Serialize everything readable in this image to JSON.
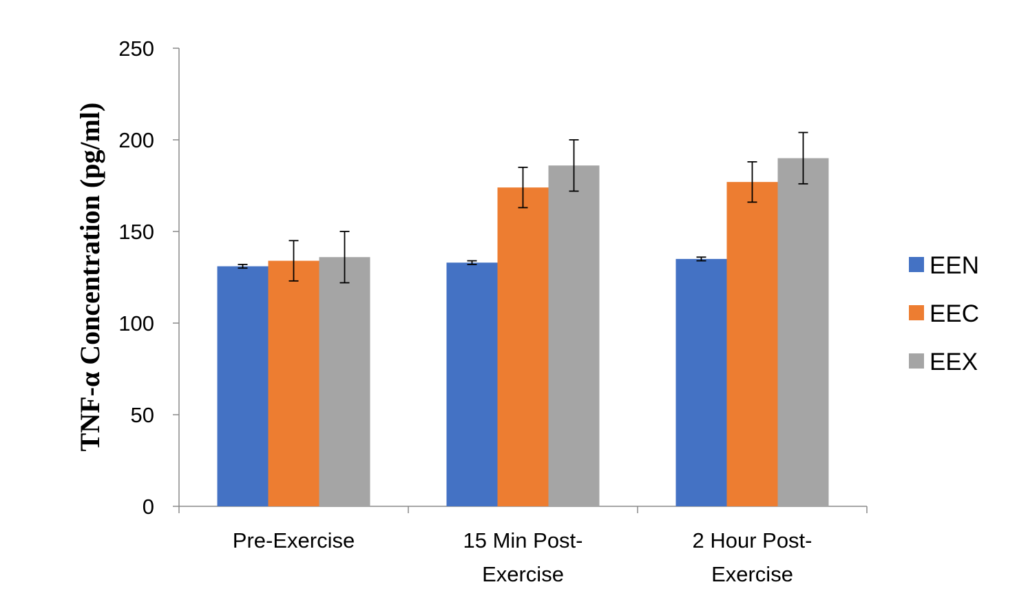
{
  "chart_data": {
    "type": "bar",
    "ylabel": "TNF-α Concentration (pg/ml)",
    "xlabel": "",
    "ylim": [
      0,
      250
    ],
    "yticks": [
      0,
      50,
      100,
      150,
      200,
      250
    ],
    "categories": [
      [
        "Pre-Exercise"
      ],
      [
        "15 Min Post-",
        "Exercise"
      ],
      [
        "2 Hour Post-",
        "Exercise"
      ]
    ],
    "series": [
      {
        "name": "EEN",
        "color": "#4472C4",
        "values": [
          131,
          133,
          135
        ],
        "errors": [
          1,
          1,
          1
        ]
      },
      {
        "name": "EEC",
        "color": "#ED7D31",
        "values": [
          134,
          174,
          177
        ],
        "errors": [
          11,
          11,
          11
        ]
      },
      {
        "name": "EEX",
        "color": "#A5A5A5",
        "values": [
          136,
          186,
          190
        ],
        "errors": [
          14,
          14,
          14
        ]
      }
    ],
    "error_bars": true,
    "grid": false,
    "legend_position": "right"
  }
}
